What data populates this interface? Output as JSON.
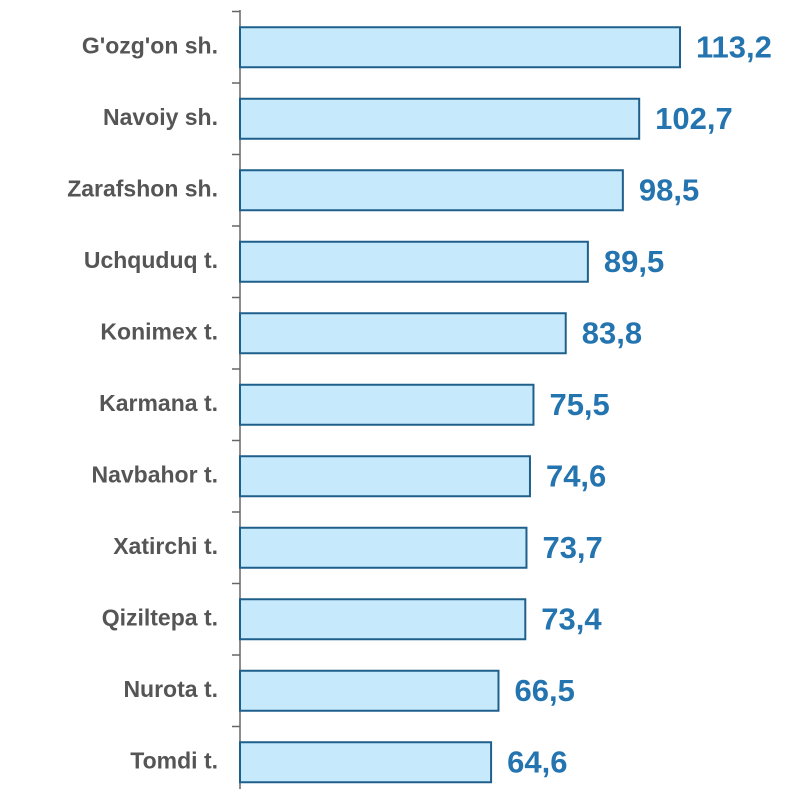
{
  "chart_data": {
    "type": "bar",
    "orientation": "horizontal",
    "categories": [
      "G'ozg'on sh.",
      "Navoiy sh.",
      "Zarafshon sh.",
      "Uchquduq t.",
      "Konimex t.",
      "Karmana t.",
      "Navbahor t.",
      "Xatirchi t.",
      "Qiziltepa t.",
      "Nurota t.",
      "Tomdi t."
    ],
    "values": [
      113.2,
      102.7,
      98.5,
      89.5,
      83.8,
      75.5,
      74.6,
      73.7,
      73.4,
      66.5,
      64.6
    ],
    "value_labels": [
      "113,2",
      "102,7",
      "98,5",
      "89,5",
      "83,8",
      "75,5",
      "74,6",
      "73,7",
      "73,4",
      "66,5",
      "64,6"
    ],
    "color": "#c6eafc",
    "edge_color": "#1f5f8b",
    "label_color": "#2474b0"
  }
}
